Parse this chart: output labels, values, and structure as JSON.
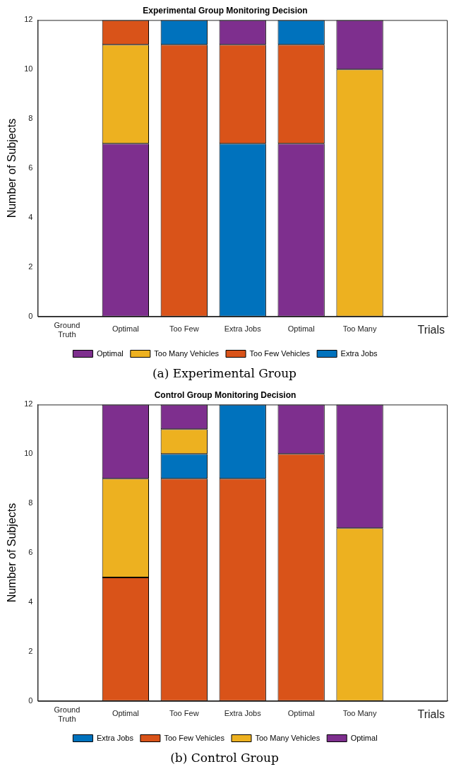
{
  "chart_data": [
    {
      "type": "bar",
      "title": "Experimental Group Monitoring Decision",
      "ylabel": "Number of Subjects",
      "xlabel": "Trials",
      "categories": [
        null,
        "Optimal",
        "Too Few",
        "Extra Jobs",
        "Optimal",
        "Too Many",
        null
      ],
      "ylim": [
        0,
        12
      ],
      "yticks": [
        0,
        2,
        4,
        6,
        8,
        10,
        12
      ],
      "grid": false,
      "legend": "bottom",
      "annotations": [
        "Ground Truth",
        "(a) Experimental Group"
      ],
      "series": [
        {
          "name": "Optimal",
          "color": "#7e2f8e",
          "values": [
            null,
            7,
            null,
            1,
            7,
            2,
            null
          ],
          "base": [
            null,
            0,
            null,
            11,
            0,
            10,
            null
          ]
        },
        {
          "name": "Too Many Vehicles",
          "color": "#edb120",
          "values": [
            null,
            4,
            null,
            null,
            null,
            10,
            null
          ],
          "base": [
            null,
            7,
            null,
            null,
            null,
            0,
            null
          ]
        },
        {
          "name": "Too Few Vehicles",
          "color": "#d95319",
          "values": [
            null,
            1,
            11,
            4,
            4,
            null,
            null
          ],
          "base": [
            null,
            11,
            0,
            7,
            7,
            null,
            null
          ]
        },
        {
          "name": "Extra Jobs",
          "color": "#0072bd",
          "values": [
            null,
            null,
            1,
            7,
            1,
            null,
            null
          ],
          "base": [
            null,
            null,
            11,
            0,
            11,
            null,
            null
          ]
        }
      ]
    },
    {
      "type": "bar",
      "title": "Control Group Monitoring Decision",
      "ylabel": "Number of Subjects",
      "xlabel": "Trials",
      "categories": [
        null,
        "Optimal",
        "Too Few",
        "Extra Jobs",
        "Optimal",
        "Too Many",
        null
      ],
      "ylim": [
        0,
        12
      ],
      "yticks": [
        0,
        2,
        4,
        6,
        8,
        10,
        12
      ],
      "grid": false,
      "legend": "bottom",
      "annotations": [
        "Ground Truth",
        "(b) Control Group"
      ],
      "series": [
        {
          "name": "Extra Jobs",
          "color": "#0072bd",
          "values": [
            null,
            null,
            1,
            3,
            null,
            null,
            null
          ],
          "base": [
            null,
            null,
            9,
            9,
            null,
            null,
            null
          ]
        },
        {
          "name": "Too Few Vehicles",
          "color": "#d95319",
          "values": [
            null,
            5,
            9,
            9,
            10,
            null,
            null
          ],
          "base": [
            null,
            0,
            0,
            0,
            0,
            null,
            null
          ]
        },
        {
          "name": "Too Many Vehicles",
          "color": "#edb120",
          "values": [
            null,
            4,
            1,
            null,
            null,
            7,
            null
          ],
          "base": [
            null,
            5,
            10,
            null,
            null,
            0,
            null
          ]
        },
        {
          "name": "Optimal",
          "color": "#7e2f8e",
          "values": [
            null,
            3,
            1,
            null,
            2,
            5,
            null
          ],
          "base": [
            null,
            9,
            11,
            null,
            10,
            7,
            null
          ]
        }
      ]
    }
  ]
}
